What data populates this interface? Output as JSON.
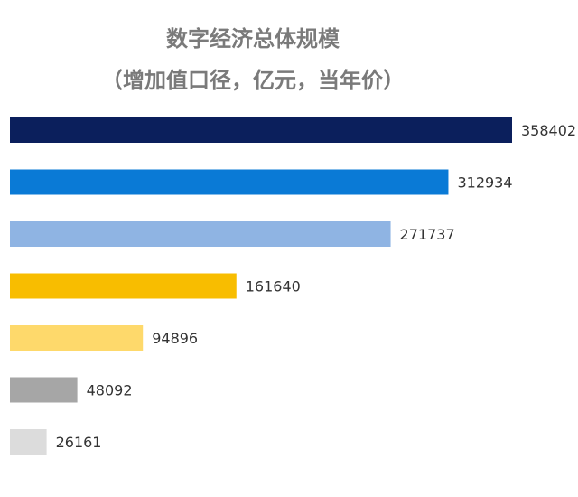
{
  "chart_data": {
    "type": "bar",
    "orientation": "horizontal",
    "title": "数字经济总体规模",
    "subtitle": "（增加值口径，亿元，当年价）",
    "xlabel": "",
    "ylabel": "",
    "grid": false,
    "legend": "none",
    "xlim": [
      0,
      358402
    ],
    "values": [
      358402,
      312934,
      271737,
      161640,
      94896,
      48092,
      26161
    ],
    "colors": [
      "#0b1f5c",
      "#0a7ad6",
      "#8fb4e3",
      "#f8bd00",
      "#fed96b",
      "#a6a6a6",
      "#dcdcdc"
    ]
  }
}
